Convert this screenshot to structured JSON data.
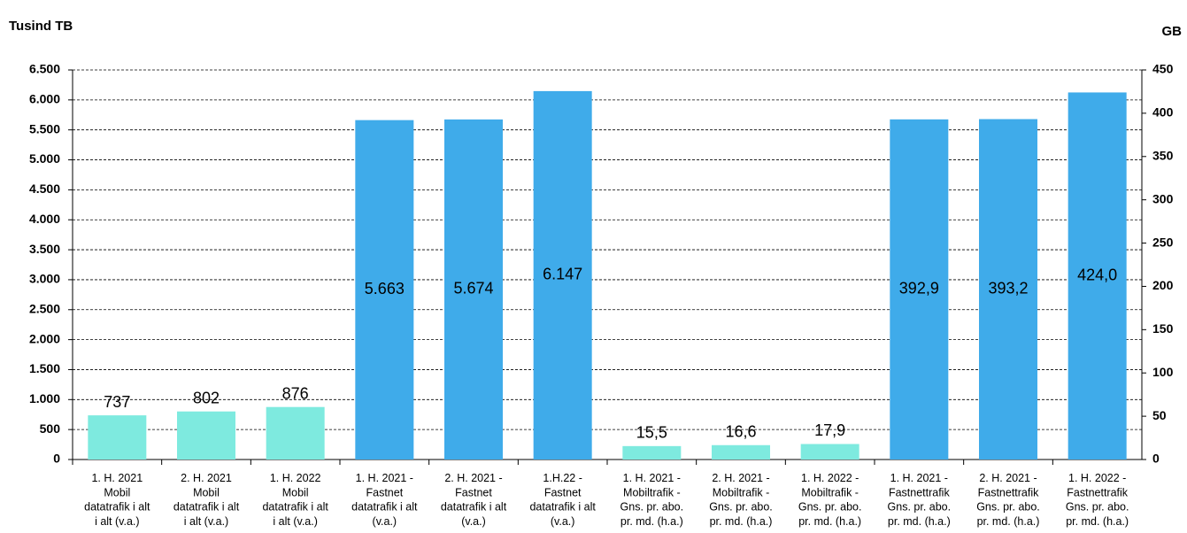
{
  "chart_data": {
    "type": "bar",
    "y_label": "Tusind TB",
    "y2_label": "GB",
    "categories": [
      "1. H. 2021\nMobil\ndatatrafik i alt\ni alt (v.a.)",
      "2. H. 2021\nMobil\ndatatrafik i alt\ni alt (v.a.)",
      "1. H. 2022\nMobil\ndatatrafik i alt\ni alt (v.a.)",
      "1. H. 2021 -\nFastnet\ndatatrafik i alt\n(v.a.)",
      "2. H. 2021 -\nFastnet\ndatatrafik i alt\n(v.a.)",
      "1.H.22 -\nFastnet\ndatatrafik i alt\n(v.a.)",
      "1. H. 2021 -\nMobiltrafik -\nGns. pr. abo.\npr. md. (h.a.)",
      "2. H. 2021 -\nMobiltrafik -\nGns. pr. abo.\npr. md. (h.a.)",
      "1. H. 2022 -\nMobiltrafik -\nGns. pr. abo.\npr. md. (h.a.)",
      "1. H. 2021 -\nFastnettrafik\nGns. pr. abo.\npr. md.  (h.a.)",
      "2. H. 2021 -\nFastnettrafik\nGns. pr. abo.\npr. md.  (h.a.)",
      "1. H. 2022 -\nFastnettrafik\nGns. pr. abo.\npr. md. (h.a.)"
    ],
    "series": [
      {
        "axis": "y",
        "colors": [
          "#7eeadf",
          "#7eeadf",
          "#7eeadf",
          "#3fabea",
          "#3fabea",
          "#3fabea",
          null,
          null,
          null,
          null,
          null,
          null
        ],
        "values": [
          737,
          802,
          876,
          5663,
          5674,
          6147,
          null,
          null,
          null,
          null,
          null,
          null
        ],
        "value_labels": [
          "737",
          "802",
          "876",
          "5.663",
          "5.674",
          "6.147",
          null,
          null,
          null,
          null,
          null,
          null
        ]
      },
      {
        "axis": "y2",
        "colors": [
          null,
          null,
          null,
          null,
          null,
          null,
          "#7eeadf",
          "#7eeadf",
          "#7eeadf",
          "#3fabea",
          "#3fabea",
          "#3fabea"
        ],
        "values": [
          null,
          null,
          null,
          null,
          null,
          null,
          15.5,
          16.6,
          17.9,
          392.9,
          393.2,
          424.0
        ],
        "value_labels": [
          null,
          null,
          null,
          null,
          null,
          null,
          "15,5",
          "16,6",
          "17,9",
          "392,9",
          "393,2",
          "424,0"
        ]
      }
    ],
    "ylim": [
      0,
      6500
    ],
    "yticks": [
      0,
      500,
      {
        "value": 1000,
        "label": "1.000"
      },
      {
        "value": 1500,
        "label": "1.500"
      },
      {
        "value": 2000,
        "label": "2.000"
      },
      {
        "value": 2500,
        "label": "2.500"
      },
      {
        "value": 3000,
        "label": "3.000"
      },
      {
        "value": 3500,
        "label": "3.500"
      },
      {
        "value": 4000,
        "label": "4.000"
      },
      {
        "value": 4500,
        "label": "4.500"
      },
      {
        "value": 5000,
        "label": "5.000"
      },
      {
        "value": 5500,
        "label": "5.500"
      },
      {
        "value": 6000,
        "label": "6.000"
      },
      {
        "value": 6500,
        "label": "6.500"
      }
    ],
    "y2lim": [
      0,
      450
    ],
    "y2ticks": [
      0,
      50,
      100,
      150,
      200,
      250,
      300,
      350,
      400,
      450
    ],
    "grid": true
  }
}
